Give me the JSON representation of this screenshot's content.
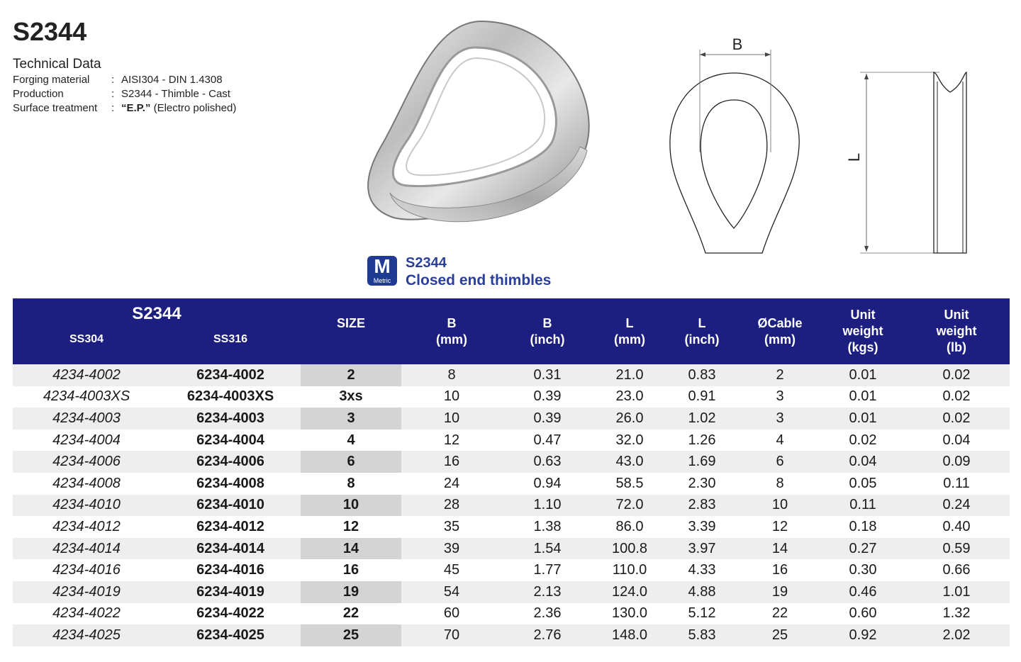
{
  "product_code": "S2344",
  "technical_data": {
    "heading": "Technical Data",
    "rows": [
      {
        "label": "Forging material",
        "sep": ":",
        "value": "AISI304 - DIN 1.4308"
      },
      {
        "label": "Production",
        "sep": ":",
        "value": "S2344 - Thimble - Cast"
      },
      {
        "label": "Surface treatment",
        "sep": ":",
        "value_bold": "“E.P.”",
        "value": " (Electro polished)"
      }
    ]
  },
  "drawing": {
    "label_b": "B",
    "label_l": "L"
  },
  "badge": {
    "letter": "M",
    "text": "Metric"
  },
  "series": {
    "code": "S2344",
    "description": "Closed end thimbles"
  },
  "table": {
    "group_title": "S2344",
    "group_sub": [
      "SS304",
      "SS316"
    ],
    "headers": [
      {
        "line1": "SIZE",
        "line2": "",
        "line3": ""
      },
      {
        "line1": "B",
        "line2": "(mm)",
        "line3": ""
      },
      {
        "line1": "B",
        "line2": "(inch)",
        "line3": ""
      },
      {
        "line1": "L",
        "line2": "(mm)",
        "line3": ""
      },
      {
        "line1": "L",
        "line2": "(inch)",
        "line3": ""
      },
      {
        "line1": "ØCable",
        "line2": "(mm)",
        "line3": ""
      },
      {
        "line1": "Unit",
        "line2": "weight",
        "line3": "(kgs)"
      },
      {
        "line1": "Unit",
        "line2": "weight",
        "line3": "(lb)"
      }
    ],
    "rows": [
      [
        "4234-4002",
        "6234-4002",
        "2",
        "8",
        "0.31",
        "21.0",
        "0.83",
        "2",
        "0.01",
        "0.02"
      ],
      [
        "4234-4003XS",
        "6234-4003XS",
        "3xs",
        "10",
        "0.39",
        "23.0",
        "0.91",
        "3",
        "0.01",
        "0.02"
      ],
      [
        "4234-4003",
        "6234-4003",
        "3",
        "10",
        "0.39",
        "26.0",
        "1.02",
        "3",
        "0.01",
        "0.02"
      ],
      [
        "4234-4004",
        "6234-4004",
        "4",
        "12",
        "0.47",
        "32.0",
        "1.26",
        "4",
        "0.02",
        "0.04"
      ],
      [
        "4234-4006",
        "6234-4006",
        "6",
        "16",
        "0.63",
        "43.0",
        "1.69",
        "6",
        "0.04",
        "0.09"
      ],
      [
        "4234-4008",
        "6234-4008",
        "8",
        "24",
        "0.94",
        "58.5",
        "2.30",
        "8",
        "0.05",
        "0.11"
      ],
      [
        "4234-4010",
        "6234-4010",
        "10",
        "28",
        "1.10",
        "72.0",
        "2.83",
        "10",
        "0.11",
        "0.24"
      ],
      [
        "4234-4012",
        "6234-4012",
        "12",
        "35",
        "1.38",
        "86.0",
        "3.39",
        "12",
        "0.18",
        "0.40"
      ],
      [
        "4234-4014",
        "6234-4014",
        "14",
        "39",
        "1.54",
        "100.8",
        "3.97",
        "14",
        "0.27",
        "0.59"
      ],
      [
        "4234-4016",
        "6234-4016",
        "16",
        "45",
        "1.77",
        "110.0",
        "4.33",
        "16",
        "0.30",
        "0.66"
      ],
      [
        "4234-4019",
        "6234-4019",
        "19",
        "54",
        "2.13",
        "124.0",
        "4.88",
        "19",
        "0.46",
        "1.01"
      ],
      [
        "4234-4022",
        "6234-4022",
        "22",
        "60",
        "2.36",
        "130.0",
        "5.12",
        "22",
        "0.60",
        "1.32"
      ],
      [
        "4234-4025",
        "6234-4025",
        "25",
        "70",
        "2.76",
        "148.0",
        "5.83",
        "25",
        "0.92",
        "2.02"
      ]
    ]
  }
}
